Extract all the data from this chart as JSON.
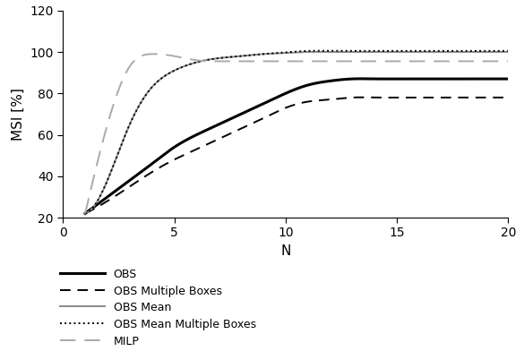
{
  "title": "",
  "xlabel": "N",
  "ylabel": "MSI [%]",
  "xlim": [
    0,
    20
  ],
  "ylim": [
    20,
    120
  ],
  "yticks": [
    20,
    40,
    60,
    80,
    100,
    120
  ],
  "xticks": [
    0,
    5,
    10,
    15,
    20
  ],
  "x": [
    1,
    2,
    3,
    4,
    5,
    6,
    7,
    8,
    9,
    10,
    11,
    12,
    13,
    14,
    15,
    16,
    17,
    18,
    19,
    20
  ],
  "OBS": [
    22,
    30,
    38,
    46,
    54,
    60,
    65,
    70,
    75,
    80,
    84,
    86,
    87,
    87,
    87,
    87,
    87,
    87,
    87,
    87
  ],
  "OBS_Multiple": [
    22,
    28,
    35,
    42,
    48,
    53,
    58,
    63,
    68,
    73,
    76,
    77,
    78,
    78,
    78,
    78,
    78,
    78,
    78,
    78
  ],
  "OBS_Mean": [
    22,
    38,
    65,
    83,
    91,
    95,
    97,
    98,
    99,
    99.5,
    100,
    100,
    100,
    100,
    100,
    100,
    100,
    100,
    100,
    100
  ],
  "OBS_Mean_Multiple": [
    22,
    38,
    65,
    83,
    91,
    95,
    97,
    98,
    99,
    99.8,
    100.5,
    100.5,
    100.5,
    100.5,
    100.5,
    100.5,
    100.5,
    100.5,
    100.5,
    100.5
  ],
  "MILP": [
    22,
    65,
    93,
    99,
    98,
    96,
    95.5,
    95.5,
    95.5,
    95.5,
    95.5,
    95.5,
    95.5,
    95.5,
    95.5,
    95.5,
    95.5,
    95.5,
    95.5,
    95.5
  ],
  "colors": {
    "OBS": "#000000",
    "OBS_Multiple": "#000000",
    "OBS_Mean": "#888888",
    "OBS_Mean_Multiple": "#000000",
    "MILP": "#aaaaaa"
  },
  "linewidths": {
    "OBS": 2.2,
    "OBS_Multiple": 1.4,
    "OBS_Mean": 1.4,
    "OBS_Mean_Multiple": 1.4,
    "MILP": 1.4
  },
  "legend_labels": [
    "OBS",
    "OBS Multiple Boxes",
    "OBS Mean",
    "OBS Mean Multiple Boxes",
    "MILP"
  ],
  "legend_keys": [
    "OBS",
    "OBS_Multiple",
    "OBS_Mean",
    "OBS_Mean_Multiple",
    "MILP"
  ],
  "background_color": "#ffffff"
}
